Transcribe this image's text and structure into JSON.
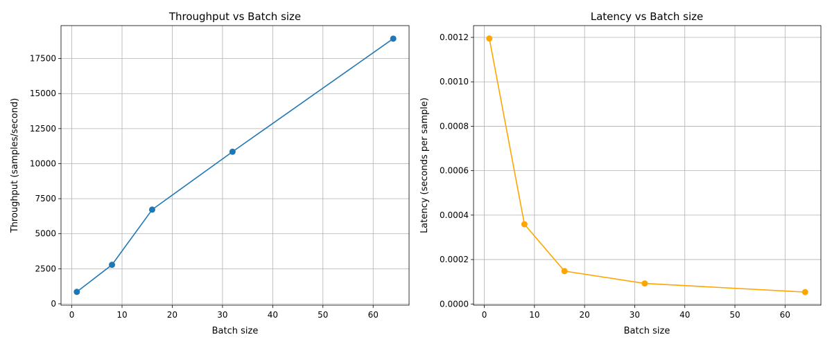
{
  "chart_data": [
    {
      "type": "line",
      "title": "Throughput vs Batch size",
      "xlabel": "Batch size",
      "ylabel": "Throughput (samples/second)",
      "x": [
        1,
        8,
        16,
        32,
        64
      ],
      "series": [
        {
          "values": [
            850,
            2780,
            6720,
            10850,
            18920
          ],
          "color": "#1f77b4",
          "marker": "circle"
        }
      ],
      "xlim": [
        -2.15,
        67.15
      ],
      "ylim": [
        -100,
        19850
      ],
      "xticks": [
        0,
        10,
        20,
        30,
        40,
        50,
        60
      ],
      "xtick_labels": [
        "0",
        "10",
        "20",
        "30",
        "40",
        "50",
        "60"
      ],
      "yticks": [
        0,
        2500,
        5000,
        7500,
        10000,
        12500,
        15000,
        17500
      ],
      "ytick_labels": [
        "0",
        "2500",
        "5000",
        "7500",
        "10000",
        "12500",
        "15000",
        "17500"
      ],
      "grid": true
    },
    {
      "type": "line",
      "title": "Latency vs Batch size",
      "xlabel": "Batch size",
      "ylabel": "Latency (seconds per sample)",
      "x": [
        1,
        8,
        16,
        32,
        64
      ],
      "series": [
        {
          "values": [
            0.001195,
            0.000359,
            0.000148,
            9.25e-05,
            5.35e-05
          ],
          "color": "#ffa500",
          "marker": "circle"
        }
      ],
      "xlim": [
        -2.15,
        67.15
      ],
      "ylim": [
        -5.3e-06,
        0.001253
      ],
      "xticks": [
        0,
        10,
        20,
        30,
        40,
        50,
        60
      ],
      "xtick_labels": [
        "0",
        "10",
        "20",
        "30",
        "40",
        "50",
        "60"
      ],
      "yticks": [
        0,
        0.0002,
        0.0004,
        0.0006,
        0.0008,
        0.001,
        0.0012
      ],
      "ytick_labels": [
        "0.0000",
        "0.0002",
        "0.0004",
        "0.0006",
        "0.0008",
        "0.0010",
        "0.0012"
      ],
      "grid": true
    }
  ]
}
